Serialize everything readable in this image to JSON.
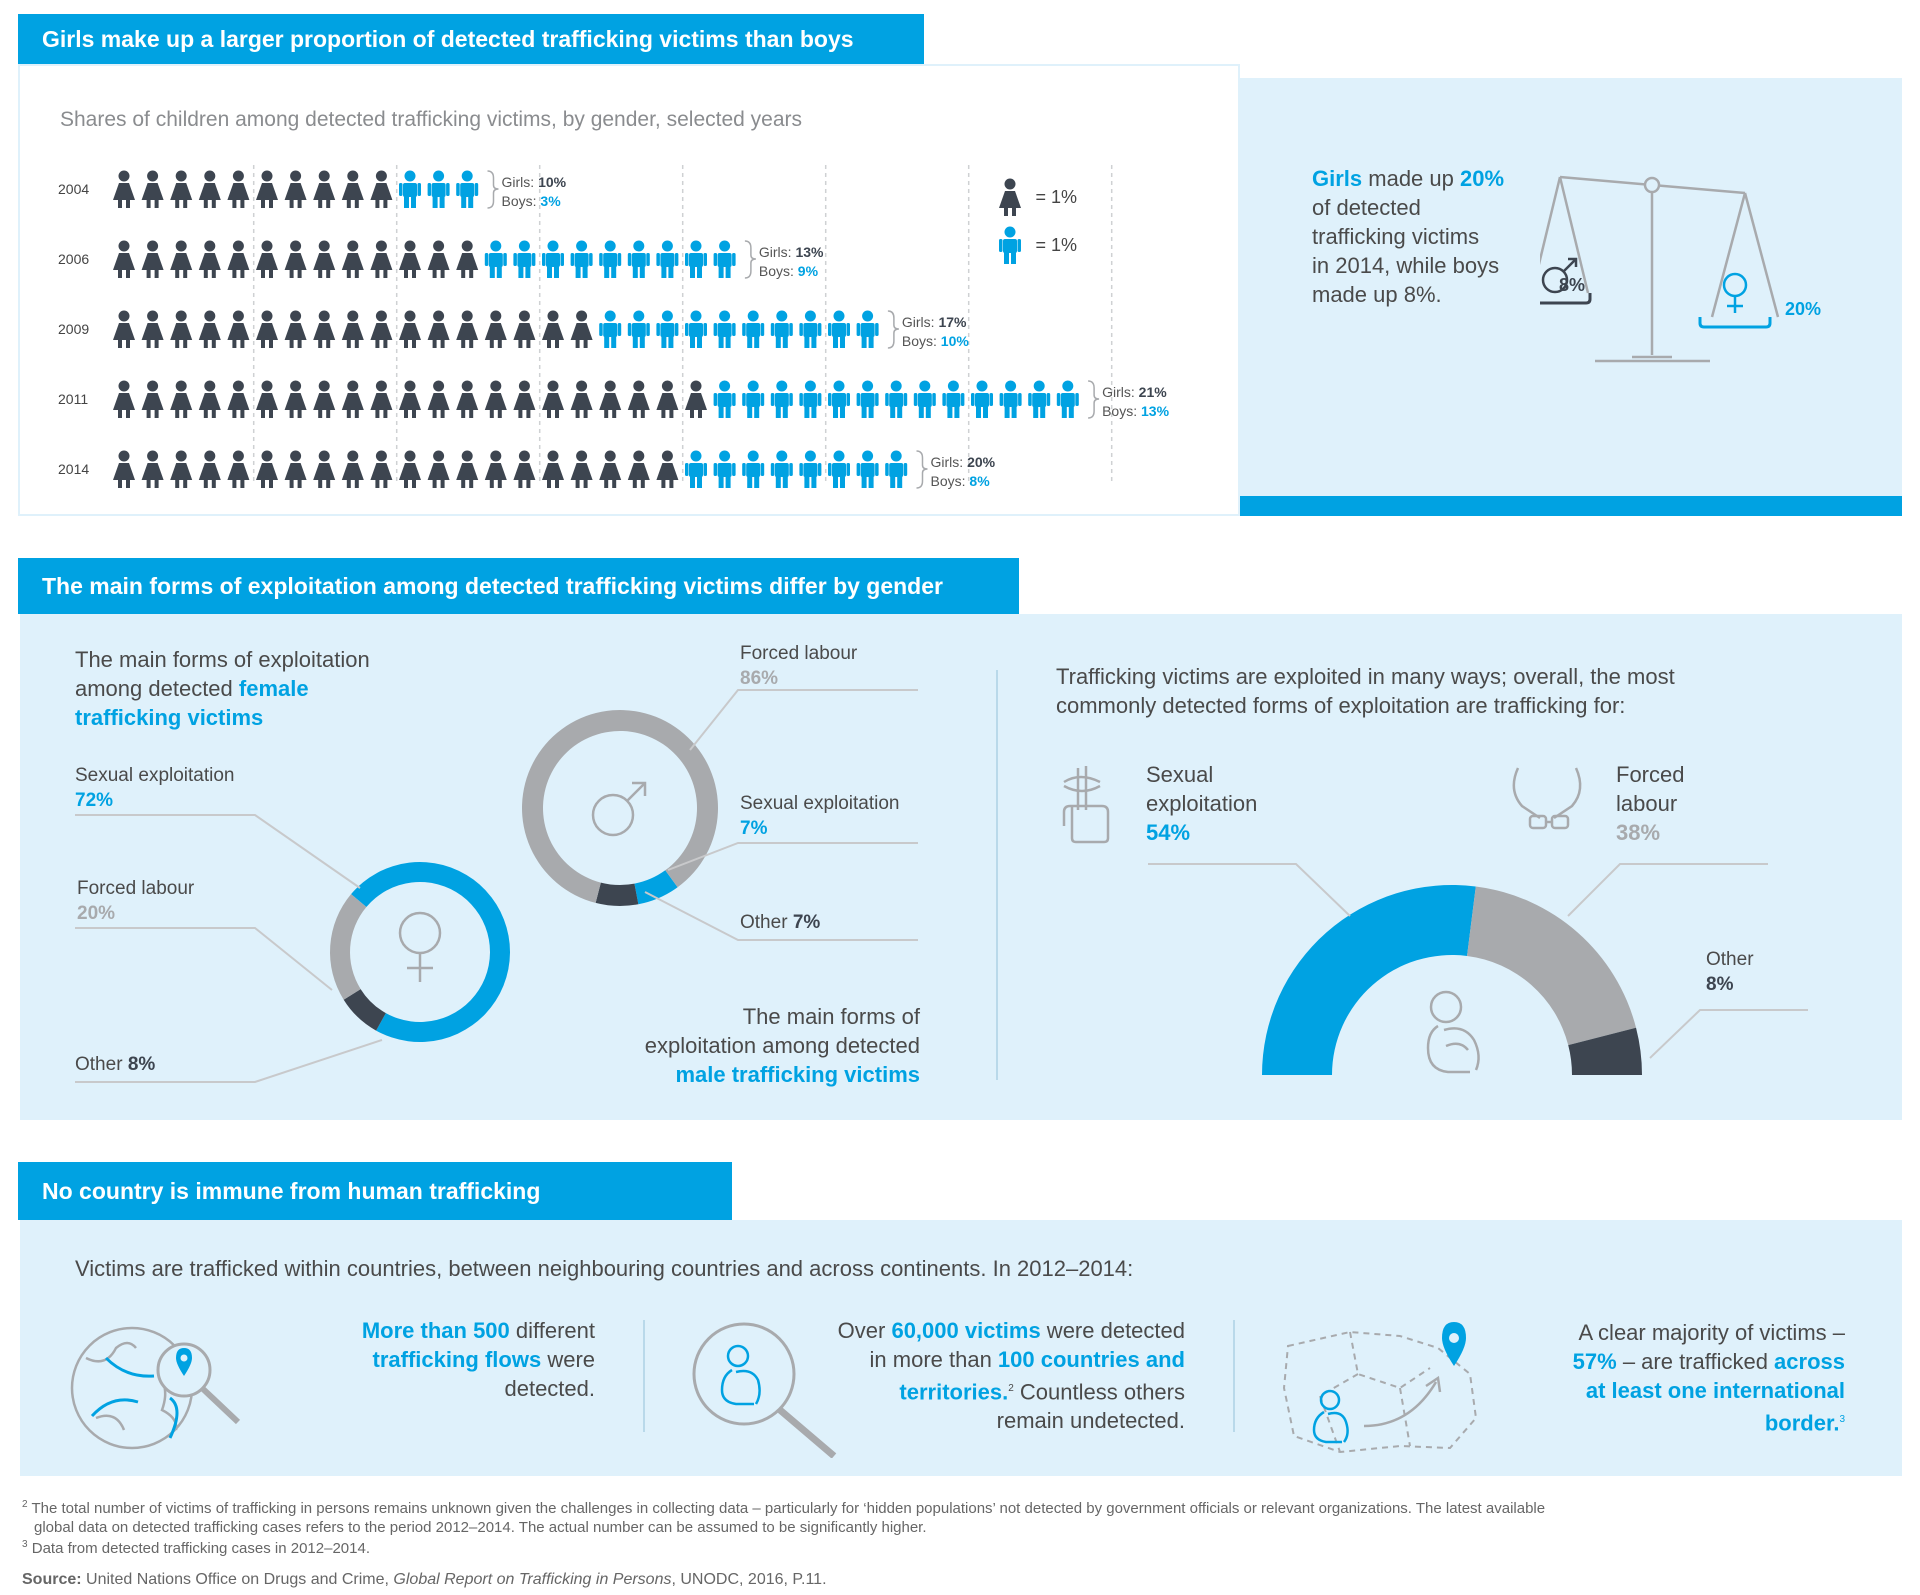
{
  "section1": {
    "title": "Girls make up a larger proportion of detected trafficking victims than boys",
    "subtitle": "Shares of children among detected trafficking victims, by gender, selected years",
    "legend": {
      "girl_label": "= 1%",
      "boy_label": "= 1%"
    },
    "girls_prefix": "Girls: ",
    "boys_prefix": "Boys: ",
    "sidebox": {
      "girls_word": "Girls",
      "line1_mid": " made up ",
      "girls_pct": "20%",
      "line2": "of detected",
      "line3": "trafficking victims",
      "line4": "in 2014, while boys",
      "line5": "made up 8%.",
      "scale_left_label": "8%",
      "scale_right_label": "20%"
    }
  },
  "chart_data": [
    {
      "type": "bar",
      "title": "Shares of children among detected trafficking victims, by gender, selected years",
      "unit_per_icon": "= 1%",
      "categories": [
        "2004",
        "2006",
        "2009",
        "2011",
        "2014"
      ],
      "series": [
        {
          "name": "Girls",
          "values": [
            10,
            13,
            17,
            21,
            20
          ],
          "labels": [
            "10%",
            "13%",
            "17%",
            "21%",
            "20%"
          ],
          "color": "#3d4550"
        },
        {
          "name": "Boys",
          "values": [
            3,
            9,
            10,
            13,
            8
          ],
          "labels": [
            "3%",
            "9%",
            "10%",
            "13%",
            "8%"
          ],
          "color": "#00a2e2"
        }
      ]
    },
    {
      "type": "pie",
      "label_line1": "The main forms of exploitation",
      "label_line2_pre": "among detected ",
      "label_line2_hl": "female",
      "label_line3_hl": "trafficking victims",
      "slices": [
        {
          "name": "Sexual exploitation",
          "value": 72,
          "label": "72%",
          "color": "#00a2e2"
        },
        {
          "name": "Other",
          "value": 8,
          "label": "8%",
          "color": "#3d4550"
        },
        {
          "name": "Forced labour",
          "value": 20,
          "label": "20%",
          "color": "#a8aaad"
        }
      ]
    },
    {
      "type": "pie",
      "label_line1": "The main forms of",
      "label_line2": "exploitation among detected",
      "label_line3_hl": "male trafficking victims",
      "slices": [
        {
          "name": "Sexual exploitation",
          "value": 7,
          "label": "7%",
          "color": "#00a2e2"
        },
        {
          "name": "Other",
          "value": 7,
          "label": "7%",
          "color": "#3d4550"
        },
        {
          "name": "Forced labour",
          "value": 86,
          "label": "86%",
          "color": "#a8aaad"
        }
      ]
    },
    {
      "type": "pie",
      "shape": "half-donut",
      "intro_line1": "Trafficking victims are exploited in many ways; overall, the most",
      "intro_line2": "commonly detected forms of exploitation are trafficking for:",
      "slices": [
        {
          "name_line1": "Sexual",
          "name_line2": "exploitation",
          "value": 54,
          "label": "54%",
          "color": "#00a2e2"
        },
        {
          "name_line1": "Forced",
          "name_line2": "labour",
          "value": 38,
          "label": "38%",
          "color": "#a8aaad"
        },
        {
          "name_line1": "Other",
          "name_line2": "",
          "value": 8,
          "label": "8%",
          "color": "#3d4550"
        }
      ]
    }
  ],
  "section2": {
    "title": "The main forms of exploitation among detected trafficking victims differ by gender",
    "other_word": "Other "
  },
  "section3": {
    "title": "No country is immune from human trafficking",
    "intro": "Victims are trafficked within countries, between neighbouring countries and across continents. In 2012–2014:",
    "fact1": {
      "hl1": "More than 500",
      "t1": " different",
      "hl2": "trafficking flows",
      "t2": " were",
      "t3": "detected."
    },
    "fact2": {
      "t1": "Over ",
      "hl1": "60,000 victims",
      "t2": " were detected",
      "t3": "in more than ",
      "hl2": "100 countries and",
      "hl3": "territories.",
      "sup": "2",
      "t4": " Countless others",
      "t5": "remain undetected."
    },
    "fact3": {
      "t1": "A clear majority of victims –",
      "hl1": "57%",
      "t2": " – are trafficked ",
      "hl2": "across",
      "hl3": "at least one international",
      "hl4": "border.",
      "sup": "3"
    }
  },
  "footnotes": {
    "n2_mark": "2",
    "n2_line1": "The total number of victims of trafficking in persons remains unknown given the challenges in collecting data – particularly for ‘hidden populations’ not detected by government officials or relevant organizations. The latest available",
    "n2_line2": "global data on detected trafficking cases refers to the period 2012–2014. The actual number can be assumed to be significantly higher.",
    "n3_mark": "3",
    "n3_line": "Data from detected trafficking cases in 2012–2014.",
    "source_label": "Source:",
    "source_text": " United Nations Office on Drugs and Crime, ",
    "source_italic": "Global Report on Trafficking in Persons",
    "source_end": ", UNODC, 2016, P.11."
  }
}
